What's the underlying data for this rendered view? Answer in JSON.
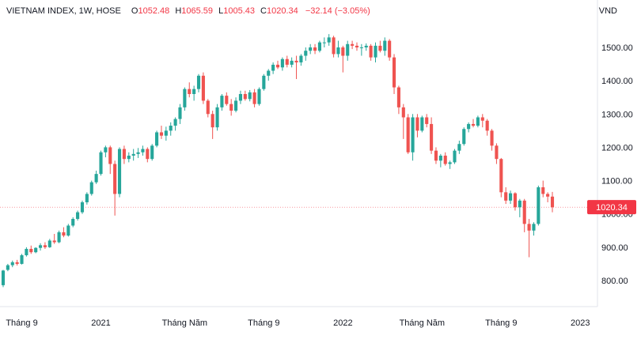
{
  "header": {
    "symbol": "VIETNAM INDEX, 1W, HOSE",
    "open_label": "O",
    "open": "1052.48",
    "high_label": "H",
    "high": "1065.59",
    "low_label": "L",
    "low": "1005.43",
    "close_label": "C",
    "close": "1020.34",
    "change": "−32.14 (−3.05%)",
    "currency": "VND"
  },
  "colors": {
    "up": "#26a69a",
    "down": "#ef5350",
    "price_line": "#f23645",
    "text": "#131722"
  },
  "chart_data": {
    "type": "candlestick",
    "title": "VIETNAM INDEX, 1W, HOSE",
    "ylabel": "VND",
    "y_ticks": [
      "800.00",
      "900.00",
      "1000.00",
      "1100.00",
      "1200.00",
      "1300.00",
      "1400.00",
      "1500.00"
    ],
    "ylim": [
      760,
      1560
    ],
    "x_ticks": [
      {
        "label": "Tháng 9",
        "week": 4
      },
      {
        "label": "2021",
        "week": 21
      },
      {
        "label": "Tháng Năm",
        "week": 39
      },
      {
        "label": "Tháng 9",
        "week": 56
      },
      {
        "label": "2022",
        "week": 73
      },
      {
        "label": "Tháng Năm",
        "week": 90
      },
      {
        "label": "Tháng 9",
        "week": 107
      },
      {
        "label": "2023",
        "week": 124
      }
    ],
    "last_price": "1020.34",
    "grid": false,
    "series": [
      {
        "values": [
          [
            786,
            832,
            780,
            830
          ],
          [
            832,
            850,
            828,
            846
          ],
          [
            846,
            860,
            840,
            855
          ],
          [
            855,
            862,
            845,
            850
          ],
          [
            850,
            880,
            848,
            876
          ],
          [
            876,
            900,
            872,
            895
          ],
          [
            895,
            905,
            880,
            885
          ],
          [
            885,
            900,
            882,
            898
          ],
          [
            898,
            912,
            890,
            906
          ],
          [
            906,
            915,
            895,
            900
          ],
          [
            900,
            925,
            898,
            920
          ],
          [
            920,
            940,
            910,
            915
          ],
          [
            915,
            950,
            912,
            945
          ],
          [
            945,
            960,
            930,
            935
          ],
          [
            935,
            970,
            932,
            965
          ],
          [
            965,
            990,
            960,
            985
          ],
          [
            985,
            1010,
            980,
            1005
          ],
          [
            1005,
            1040,
            1000,
            1035
          ],
          [
            1035,
            1065,
            1028,
            1060
          ],
          [
            1060,
            1100,
            1055,
            1095
          ],
          [
            1095,
            1130,
            1090,
            1120
          ],
          [
            1120,
            1190,
            1115,
            1185
          ],
          [
            1185,
            1205,
            1170,
            1200
          ],
          [
            1200,
            1205,
            1120,
            1150
          ],
          [
            1150,
            1160,
            995,
            1060
          ],
          [
            1060,
            1200,
            1050,
            1195
          ],
          [
            1195,
            1205,
            1150,
            1165
          ],
          [
            1165,
            1185,
            1155,
            1175
          ],
          [
            1175,
            1195,
            1160,
            1180
          ],
          [
            1180,
            1198,
            1168,
            1185
          ],
          [
            1185,
            1205,
            1175,
            1195
          ],
          [
            1195,
            1200,
            1155,
            1165
          ],
          [
            1165,
            1210,
            1160,
            1205
          ],
          [
            1205,
            1250,
            1200,
            1245
          ],
          [
            1245,
            1265,
            1225,
            1235
          ],
          [
            1235,
            1262,
            1220,
            1250
          ],
          [
            1250,
            1275,
            1235,
            1265
          ],
          [
            1265,
            1290,
            1250,
            1285
          ],
          [
            1285,
            1330,
            1270,
            1320
          ],
          [
            1320,
            1380,
            1310,
            1375
          ],
          [
            1375,
            1395,
            1350,
            1360
          ],
          [
            1360,
            1385,
            1340,
            1375
          ],
          [
            1375,
            1420,
            1365,
            1415
          ],
          [
            1415,
            1425,
            1330,
            1340
          ],
          [
            1340,
            1345,
            1290,
            1300
          ],
          [
            1300,
            1310,
            1225,
            1260
          ],
          [
            1260,
            1330,
            1250,
            1320
          ],
          [
            1320,
            1360,
            1310,
            1355
          ],
          [
            1355,
            1365,
            1325,
            1330
          ],
          [
            1330,
            1345,
            1295,
            1310
          ],
          [
            1310,
            1350,
            1305,
            1340
          ],
          [
            1340,
            1370,
            1330,
            1360
          ],
          [
            1360,
            1370,
            1340,
            1345
          ],
          [
            1345,
            1372,
            1338,
            1365
          ],
          [
            1365,
            1375,
            1320,
            1330
          ],
          [
            1330,
            1380,
            1325,
            1375
          ],
          [
            1375,
            1420,
            1370,
            1415
          ],
          [
            1415,
            1435,
            1400,
            1430
          ],
          [
            1430,
            1455,
            1420,
            1448
          ],
          [
            1448,
            1460,
            1435,
            1440
          ],
          [
            1440,
            1470,
            1430,
            1465
          ],
          [
            1465,
            1475,
            1440,
            1448
          ],
          [
            1448,
            1470,
            1440,
            1460
          ],
          [
            1460,
            1475,
            1405,
            1455
          ],
          [
            1455,
            1480,
            1445,
            1475
          ],
          [
            1475,
            1500,
            1460,
            1490
          ],
          [
            1490,
            1510,
            1480,
            1500
          ],
          [
            1500,
            1510,
            1480,
            1490
          ],
          [
            1490,
            1520,
            1485,
            1515
          ],
          [
            1515,
            1530,
            1500,
            1515
          ],
          [
            1515,
            1540,
            1505,
            1530
          ],
          [
            1530,
            1535,
            1470,
            1480
          ],
          [
            1480,
            1520,
            1470,
            1500
          ],
          [
            1500,
            1505,
            1425,
            1475
          ],
          [
            1475,
            1520,
            1460,
            1510
          ],
          [
            1510,
            1520,
            1495,
            1505
          ],
          [
            1505,
            1515,
            1490,
            1500
          ],
          [
            1500,
            1510,
            1475,
            1500
          ],
          [
            1500,
            1512,
            1490,
            1505
          ],
          [
            1505,
            1510,
            1460,
            1470
          ],
          [
            1470,
            1515,
            1455,
            1505
          ],
          [
            1505,
            1520,
            1485,
            1490
          ],
          [
            1490,
            1530,
            1475,
            1520
          ],
          [
            1520,
            1525,
            1460,
            1470
          ],
          [
            1470,
            1480,
            1360,
            1380
          ],
          [
            1380,
            1385,
            1300,
            1320
          ],
          [
            1320,
            1330,
            1225,
            1290
          ],
          [
            1290,
            1300,
            1180,
            1185
          ],
          [
            1185,
            1300,
            1160,
            1290
          ],
          [
            1290,
            1300,
            1230,
            1250
          ],
          [
            1250,
            1295,
            1245,
            1290
          ],
          [
            1290,
            1300,
            1260,
            1270
          ],
          [
            1270,
            1290,
            1180,
            1190
          ],
          [
            1190,
            1200,
            1150,
            1160
          ],
          [
            1160,
            1180,
            1140,
            1175
          ],
          [
            1175,
            1185,
            1145,
            1150
          ],
          [
            1150,
            1160,
            1135,
            1155
          ],
          [
            1155,
            1195,
            1150,
            1190
          ],
          [
            1190,
            1220,
            1180,
            1210
          ],
          [
            1210,
            1260,
            1205,
            1255
          ],
          [
            1255,
            1275,
            1245,
            1270
          ],
          [
            1270,
            1285,
            1260,
            1265
          ],
          [
            1265,
            1295,
            1260,
            1290
          ],
          [
            1290,
            1300,
            1260,
            1280
          ],
          [
            1280,
            1285,
            1235,
            1250
          ],
          [
            1250,
            1255,
            1190,
            1205
          ],
          [
            1205,
            1212,
            1150,
            1165
          ],
          [
            1165,
            1168,
            1050,
            1065
          ],
          [
            1065,
            1080,
            1030,
            1040
          ],
          [
            1040,
            1070,
            1030,
            1062
          ],
          [
            1062,
            1065,
            1010,
            1020
          ],
          [
            1020,
            1045,
            990,
            1040
          ],
          [
            1040,
            1045,
            945,
            970
          ],
          [
            970,
            985,
            870,
            950
          ],
          [
            950,
            975,
            935,
            970
          ],
          [
            970,
            1085,
            965,
            1080
          ],
          [
            1080,
            1100,
            1050,
            1060
          ],
          [
            1060,
            1065,
            1035,
            1052
          ],
          [
            1052,
            1066,
            1005,
            1020
          ]
        ]
      }
    ]
  }
}
